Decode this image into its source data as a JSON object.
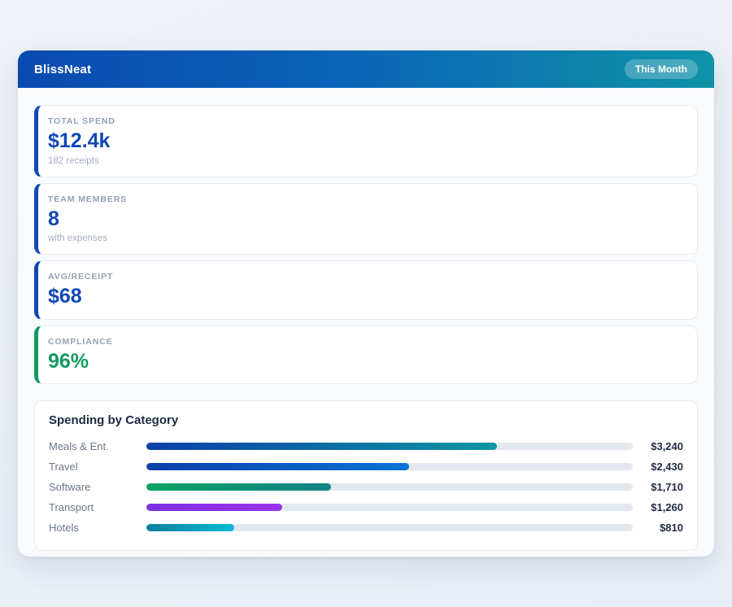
{
  "header": {
    "app_title": "BlissNeat",
    "badge_label": "This Month"
  },
  "colors": {
    "header_gradient_start": "#0a4ab0",
    "header_gradient_end": "#0f93a8",
    "stat_accent_blue": "#1148b6",
    "stat_accent_green": "#12995f",
    "bar_track": "#e3e8ef",
    "panel_background": "#f8fafc"
  },
  "stats": [
    {
      "label": "TOTAL SPEND",
      "value": "$12.4k",
      "sub": "182 receipts",
      "accent": "#1148b6"
    },
    {
      "label": "TEAM MEMBERS",
      "value": "8",
      "sub": "with expenses",
      "accent": "#1148b6"
    },
    {
      "label": "AVG/RECEIPT",
      "value": "$68",
      "sub": "",
      "accent": "#1148b6"
    },
    {
      "label": "COMPLIANCE",
      "value": "96%",
      "sub": "",
      "accent": "#12995f"
    }
  ],
  "chart": {
    "title": "Spending by Category",
    "max_scale": 4500,
    "rows": [
      {
        "category": "Meals & Ent.",
        "value": 3240,
        "value_label": "$3,240",
        "bar_colors": [
          "#0a3fa8",
          "#0d97a1"
        ]
      },
      {
        "category": "Travel",
        "value": 2430,
        "value_label": "$2,430",
        "bar_colors": [
          "#0a3fa8",
          "#0b74d6"
        ]
      },
      {
        "category": "Software",
        "value": 1710,
        "value_label": "$1,710",
        "bar_colors": [
          "#07a263",
          "#128287"
        ]
      },
      {
        "category": "Transport",
        "value": 1260,
        "value_label": "$1,260",
        "bar_colors": [
          "#7e2ee3",
          "#9b33ea"
        ]
      },
      {
        "category": "Hotels",
        "value": 810,
        "value_label": "$810",
        "bar_colors": [
          "#0e7f9e",
          "#07bad6"
        ]
      }
    ]
  },
  "chart_data": {
    "type": "bar",
    "orientation": "horizontal",
    "title": "Spending by Category",
    "categories": [
      "Meals & Ent.",
      "Travel",
      "Software",
      "Transport",
      "Hotels"
    ],
    "values": [
      3240,
      2430,
      1710,
      1260,
      810
    ],
    "value_labels": [
      "$3,240",
      "$2,430",
      "$1,710",
      "$1,260",
      "$810"
    ],
    "xlim": [
      0,
      4500
    ],
    "grid": false,
    "legend": false
  }
}
